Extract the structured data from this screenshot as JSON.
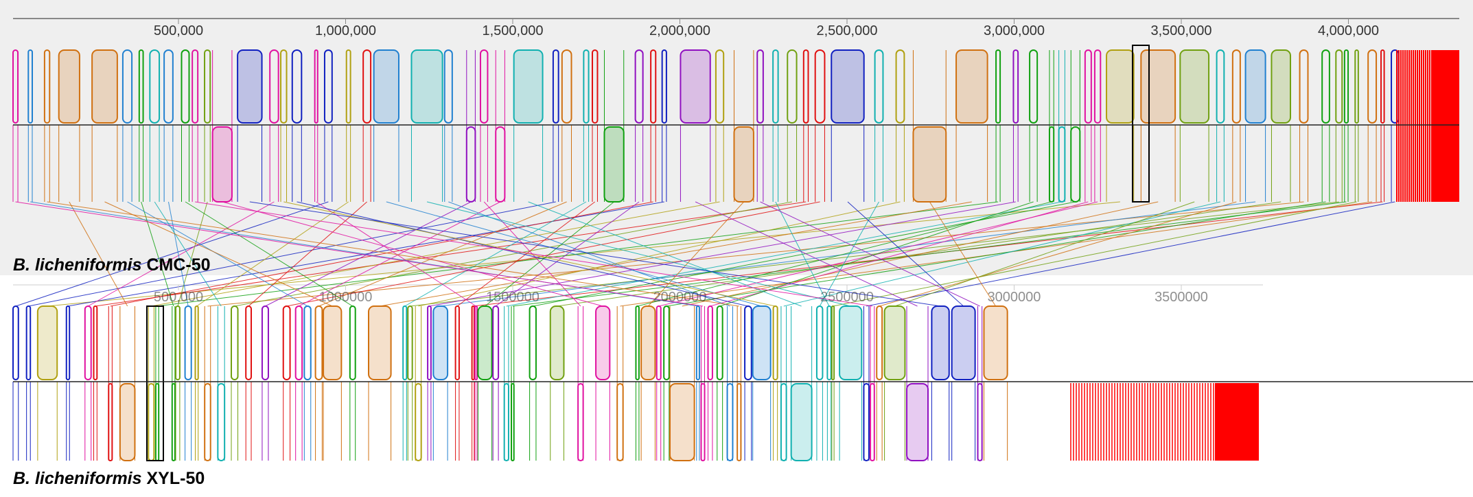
{
  "tracks": [
    {
      "species": "B. licheniformis",
      "strain": "CMC-50",
      "ruler": [
        "500,000",
        "1,000,000",
        "1,500,000",
        "2,000,000",
        "2,500,000",
        "3,000,000",
        "3,500,000",
        "4,000,000"
      ]
    },
    {
      "species": "B. licheniformis",
      "strain": "XYL-50",
      "ruler": [
        "500,000",
        "1000000",
        "1500000",
        "2000000",
        "2500000",
        "3000000",
        "3500000"
      ]
    }
  ]
}
